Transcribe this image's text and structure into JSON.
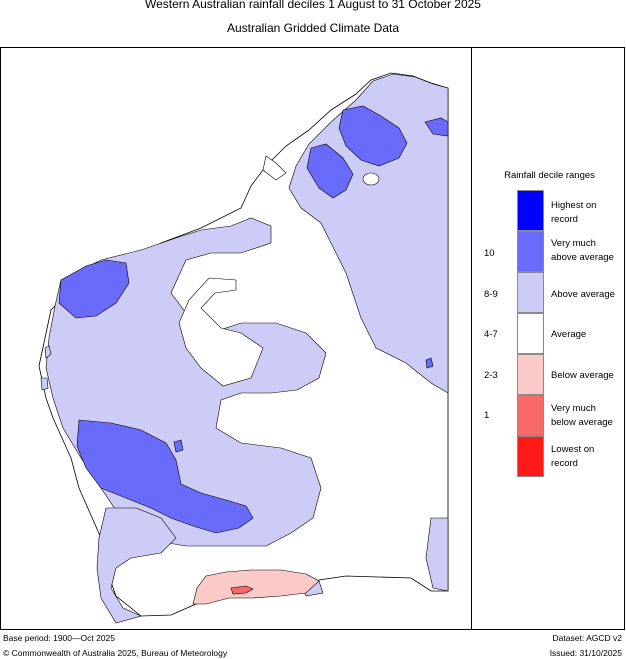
{
  "title": "Western Australian rainfall deciles     1 August to 31 October 2025",
  "subtitle": "Australian Gridded Climate Data",
  "legend": {
    "title": "Rainfall decile ranges",
    "items": [
      {
        "label": "Highest on record",
        "decile": "",
        "color": "#0000ff"
      },
      {
        "label": "Very much above average",
        "decile": "10",
        "color": "#6b6bfb"
      },
      {
        "label": "Above average",
        "decile": "8-9",
        "color": "#ccccf6"
      },
      {
        "label": "Average",
        "decile": "4-7",
        "color": "#ffffff"
      },
      {
        "label": "Below average",
        "decile": "2-3",
        "color": "#fcc9c9"
      },
      {
        "label": "Very much below average",
        "decile": "1",
        "color": "#f86a6a"
      },
      {
        "label": "Lowest on record",
        "decile": "",
        "color": "#ff1a1a"
      }
    ]
  },
  "footer": {
    "base_period": "Base period: 1900—Oct 2025",
    "copyright": "© Commonwealth of Australia 2025, Bureau of Meteorology",
    "dataset": "Dataset: AGCD v2",
    "issued": "Issued: 31/10/2025"
  }
}
